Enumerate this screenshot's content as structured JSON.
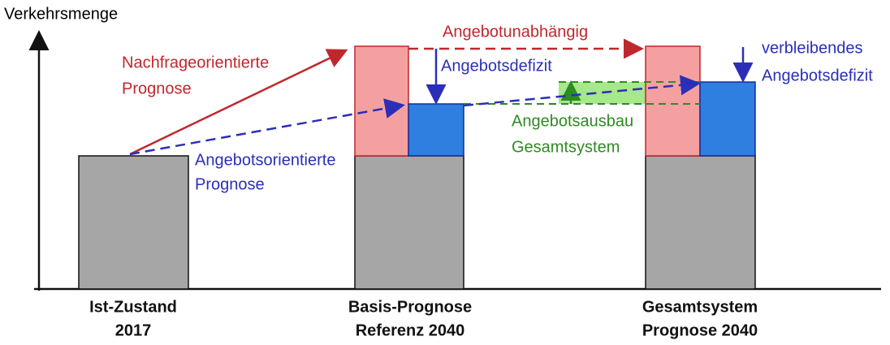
{
  "axis_label": "Verkehrsmenge",
  "annotations": {
    "demand": [
      "Nachfrageorientierte",
      "Prognose"
    ],
    "supply": [
      "Angebotsorientierte",
      "Prognose"
    ],
    "independent": "Angebotunabhängig",
    "deficit": "Angebotsdefizit",
    "expansion": [
      "Angebotsausbau",
      "Gesamtsystem"
    ],
    "remaining": [
      "verbleibendes",
      "Angebotsdefizit"
    ]
  },
  "groups": [
    [
      "Ist-Zustand",
      "2017"
    ],
    [
      "Basis-Prognose",
      "Referenz 2040"
    ],
    [
      "Gesamtsystem",
      "Prognose 2040"
    ]
  ]
}
